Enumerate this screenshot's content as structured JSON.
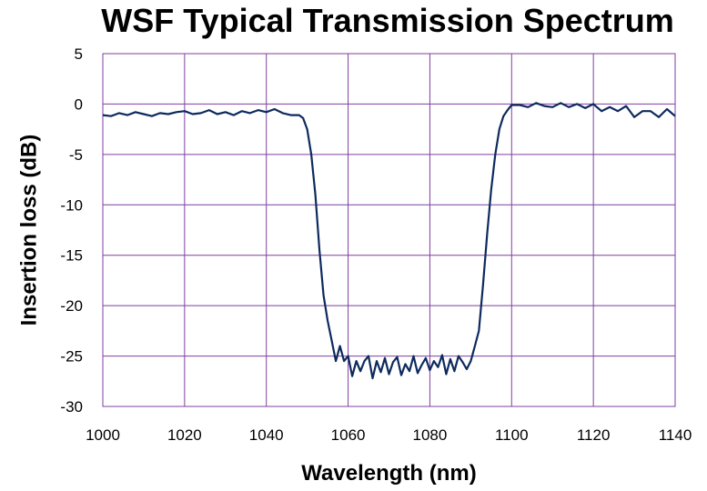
{
  "chart_data": {
    "type": "line",
    "title": "WSF Typical Transmission Spectrum",
    "xlabel": "Wavelength (nm)",
    "ylabel": "Insertion loss  (dB)",
    "xlim": [
      1000,
      1140
    ],
    "ylim": [
      -30,
      5
    ],
    "xticks": [
      1000,
      1020,
      1040,
      1060,
      1080,
      1100,
      1120,
      1140
    ],
    "yticks": [
      5,
      0,
      -5,
      -10,
      -15,
      -20,
      -25,
      -30
    ],
    "grid": true,
    "colors": {
      "line": "#0d2a5e",
      "grid": "#7f3f9f",
      "frame": "#7f3f9f"
    },
    "series": [
      {
        "x": [
          1000,
          1002,
          1004,
          1006,
          1008,
          1010,
          1012,
          1014,
          1016,
          1018,
          1020,
          1022,
          1024,
          1026,
          1028,
          1030,
          1032,
          1034,
          1036,
          1038,
          1040,
          1042,
          1044,
          1046,
          1048,
          1049,
          1050,
          1051,
          1052,
          1053,
          1054,
          1055,
          1056,
          1057,
          1058,
          1059,
          1060,
          1061,
          1062,
          1063,
          1064,
          1065,
          1066,
          1067,
          1068,
          1069,
          1070,
          1071,
          1072,
          1073,
          1074,
          1075,
          1076,
          1077,
          1078,
          1079,
          1080,
          1081,
          1082,
          1083,
          1084,
          1085,
          1086,
          1087,
          1088,
          1089,
          1090,
          1091,
          1092,
          1093,
          1094,
          1095,
          1096,
          1097,
          1098,
          1099,
          1100,
          1102,
          1104,
          1106,
          1108,
          1110,
          1112,
          1114,
          1116,
          1118,
          1120,
          1122,
          1124,
          1126,
          1128,
          1130,
          1132,
          1134,
          1136,
          1138,
          1140
        ],
        "y": [
          -1.1,
          -1.2,
          -0.9,
          -1.1,
          -0.8,
          -1.0,
          -1.2,
          -0.9,
          -1.0,
          -0.8,
          -0.7,
          -1.0,
          -0.9,
          -0.6,
          -1.0,
          -0.8,
          -1.1,
          -0.7,
          -0.9,
          -0.6,
          -0.8,
          -0.5,
          -0.9,
          -1.1,
          -1.1,
          -1.4,
          -2.5,
          -5.0,
          -9.0,
          -14.5,
          -19.0,
          -21.5,
          -23.5,
          -25.5,
          -24.0,
          -25.5,
          -25.0,
          -27.0,
          -25.5,
          -26.5,
          -25.5,
          -25.0,
          -27.2,
          -25.5,
          -26.6,
          -25.2,
          -26.8,
          -25.6,
          -25.1,
          -26.9,
          -25.8,
          -26.5,
          -25.0,
          -26.7,
          -25.9,
          -25.2,
          -26.4,
          -25.5,
          -26.1,
          -24.9,
          -26.8,
          -25.3,
          -26.5,
          -25.0,
          -25.6,
          -26.3,
          -25.5,
          -24.0,
          -22.5,
          -18.0,
          -13.0,
          -8.5,
          -5.0,
          -2.5,
          -1.2,
          -0.6,
          -0.1,
          -0.1,
          -0.3,
          0.1,
          -0.2,
          -0.3,
          0.1,
          -0.3,
          0.0,
          -0.4,
          0.0,
          -0.7,
          -0.3,
          -0.7,
          -0.2,
          -1.3,
          -0.7,
          -0.7,
          -1.3,
          -0.5,
          -1.2
        ]
      }
    ]
  }
}
